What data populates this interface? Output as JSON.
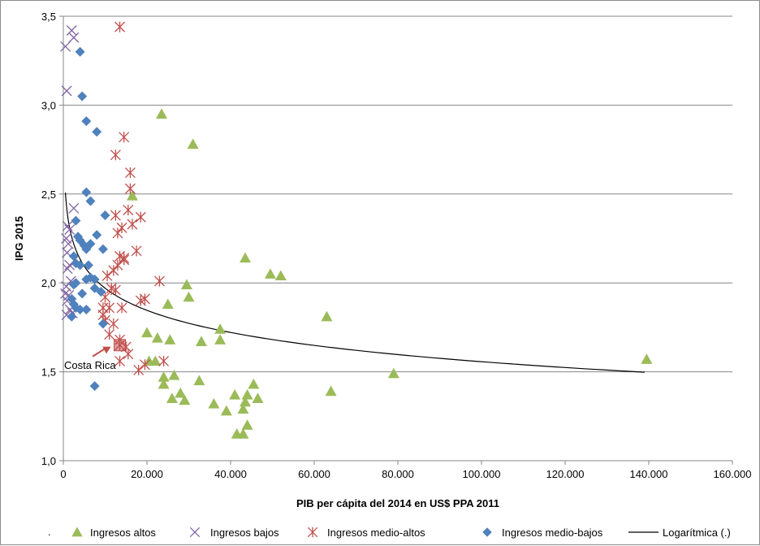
{
  "chart_data": {
    "type": "scatter",
    "xlabel": "PIB per cápita del 2014 en US$ PPA 2011",
    "ylabel": "IPG 2015",
    "xlim": [
      0,
      160000
    ],
    "ylim": [
      1.0,
      3.5
    ],
    "x_ticks": [
      0,
      20000,
      40000,
      60000,
      80000,
      100000,
      120000,
      140000,
      160000
    ],
    "x_tick_labels": [
      "0",
      "20.000",
      "40.000",
      "60.000",
      "80.000",
      "100.000",
      "120.000",
      "140.000",
      "160.000"
    ],
    "y_ticks": [
      1.0,
      1.5,
      2.0,
      2.5,
      3.0,
      3.5
    ],
    "y_tick_labels": [
      "1,0",
      "1,5",
      "2,0",
      "2,5",
      "3,0",
      "3,5"
    ],
    "grid": "horizontal",
    "legend_position": "bottom",
    "legend_prefix": ".",
    "series": [
      {
        "name": "Ingresos altos",
        "marker": "triangle",
        "color": "#9bbb59",
        "points": [
          [
            16500,
            2.49
          ],
          [
            23500,
            2.95
          ],
          [
            31000,
            2.78
          ],
          [
            43500,
            2.14
          ],
          [
            49500,
            2.05
          ],
          [
            52000,
            2.04
          ],
          [
            29500,
            1.99
          ],
          [
            30000,
            1.92
          ],
          [
            25000,
            1.88
          ],
          [
            63000,
            1.81
          ],
          [
            37500,
            1.74
          ],
          [
            37500,
            1.68
          ],
          [
            20000,
            1.72
          ],
          [
            22500,
            1.69
          ],
          [
            25500,
            1.68
          ],
          [
            33000,
            1.67
          ],
          [
            20500,
            1.56
          ],
          [
            22000,
            1.56
          ],
          [
            24000,
            1.47
          ],
          [
            26500,
            1.48
          ],
          [
            32500,
            1.45
          ],
          [
            24000,
            1.43
          ],
          [
            79000,
            1.49
          ],
          [
            139500,
            1.57
          ],
          [
            45500,
            1.43
          ],
          [
            64000,
            1.39
          ],
          [
            26000,
            1.35
          ],
          [
            28000,
            1.38
          ],
          [
            29000,
            1.34
          ],
          [
            41000,
            1.37
          ],
          [
            44000,
            1.37
          ],
          [
            46500,
            1.35
          ],
          [
            36000,
            1.32
          ],
          [
            39000,
            1.28
          ],
          [
            43000,
            1.29
          ],
          [
            43500,
            1.33
          ],
          [
            44000,
            1.2
          ],
          [
            41500,
            1.15
          ],
          [
            43000,
            1.15
          ]
        ]
      },
      {
        "name": "Ingresos bajos",
        "marker": "x",
        "color": "#8064a2",
        "points": [
          [
            2000,
            3.42
          ],
          [
            2500,
            3.38
          ],
          [
            500,
            3.33
          ],
          [
            800,
            3.08
          ],
          [
            1500,
            2.3
          ],
          [
            2500,
            2.42
          ],
          [
            1000,
            2.32
          ],
          [
            700,
            2.25
          ],
          [
            1200,
            2.22
          ],
          [
            900,
            2.17
          ],
          [
            1500,
            2.1
          ],
          [
            1000,
            2.08
          ],
          [
            1800,
            2.01
          ],
          [
            700,
            1.98
          ],
          [
            500,
            1.94
          ],
          [
            1300,
            1.93
          ],
          [
            900,
            1.9
          ],
          [
            1600,
            1.85
          ],
          [
            2200,
            1.83
          ],
          [
            800,
            1.82
          ]
        ]
      },
      {
        "name": "Ingresos medio-altos",
        "marker": "star",
        "color": "#c0504d",
        "points": [
          [
            13500,
            3.44
          ],
          [
            14500,
            2.82
          ],
          [
            12500,
            2.72
          ],
          [
            16000,
            2.62
          ],
          [
            16000,
            2.53
          ],
          [
            15500,
            2.41
          ],
          [
            12500,
            2.38
          ],
          [
            18500,
            2.37
          ],
          [
            14000,
            2.31
          ],
          [
            13000,
            2.28
          ],
          [
            16500,
            2.33
          ],
          [
            17500,
            2.18
          ],
          [
            13500,
            2.15
          ],
          [
            14500,
            2.13
          ],
          [
            12000,
            2.07
          ],
          [
            13000,
            2.1
          ],
          [
            23000,
            2.01
          ],
          [
            10500,
            2.04
          ],
          [
            11500,
            1.97
          ],
          [
            12500,
            1.96
          ],
          [
            18500,
            1.9
          ],
          [
            9500,
            1.86
          ],
          [
            11000,
            1.86
          ],
          [
            14000,
            1.86
          ],
          [
            9500,
            1.82
          ],
          [
            12000,
            1.77
          ],
          [
            10000,
            1.79
          ],
          [
            11000,
            1.71
          ],
          [
            13500,
            1.68
          ],
          [
            15000,
            1.64
          ],
          [
            15500,
            1.6
          ],
          [
            13500,
            1.56
          ],
          [
            24000,
            1.56
          ],
          [
            18000,
            1.51
          ],
          [
            19500,
            1.54
          ],
          [
            14500,
            2.14
          ],
          [
            19500,
            1.91
          ],
          [
            10000,
            1.92
          ]
        ]
      },
      {
        "name": "Ingresos medio-bajos",
        "marker": "diamond",
        "color": "#4f81bd",
        "points": [
          [
            4000,
            3.3
          ],
          [
            4500,
            3.05
          ],
          [
            5500,
            2.91
          ],
          [
            8000,
            2.85
          ],
          [
            5500,
            2.51
          ],
          [
            6500,
            2.46
          ],
          [
            10000,
            2.38
          ],
          [
            3000,
            2.35
          ],
          [
            3500,
            2.26
          ],
          [
            8000,
            2.27
          ],
          [
            4000,
            2.24
          ],
          [
            5000,
            2.21
          ],
          [
            6500,
            2.22
          ],
          [
            5500,
            2.19
          ],
          [
            9500,
            2.19
          ],
          [
            2500,
            2.15
          ],
          [
            3000,
            2.11
          ],
          [
            6000,
            2.1
          ],
          [
            4000,
            2.1
          ],
          [
            6500,
            2.03
          ],
          [
            5500,
            2.02
          ],
          [
            7500,
            2.02
          ],
          [
            3000,
            2.0
          ],
          [
            2500,
            1.99
          ],
          [
            7500,
            1.97
          ],
          [
            4500,
            1.94
          ],
          [
            9000,
            1.95
          ],
          [
            2000,
            1.91
          ],
          [
            2500,
            1.88
          ],
          [
            3000,
            1.86
          ],
          [
            4000,
            1.85
          ],
          [
            5500,
            1.85
          ],
          [
            2000,
            1.81
          ],
          [
            9500,
            1.77
          ],
          [
            7500,
            1.42
          ]
        ]
      }
    ],
    "highlight": {
      "label": "Costa Rica",
      "x": 13500,
      "y": 1.65,
      "color": "#c0504d"
    },
    "trendline": {
      "name": "Logarítmica (.)",
      "type": "logarithmic",
      "a": 3.6234,
      "b": -0.1795,
      "x_from": 500,
      "x_to": 139000,
      "color": "#000000"
    }
  }
}
